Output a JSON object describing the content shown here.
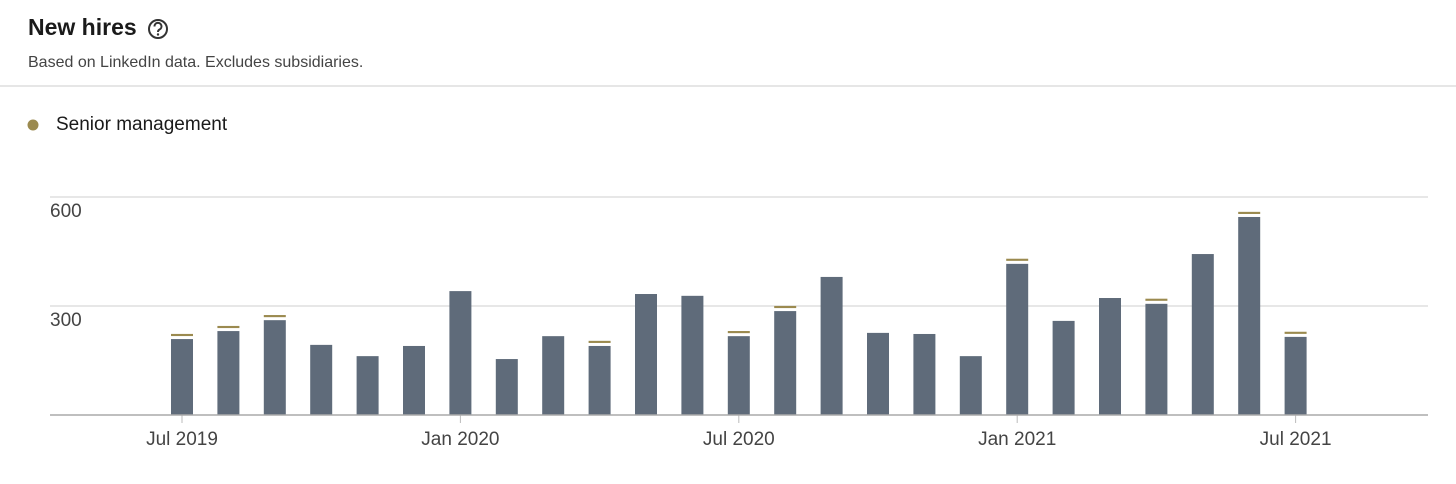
{
  "chart_data": {
    "type": "bar",
    "stacked": true,
    "title": "New hires",
    "subtitle": "Based on LinkedIn data. Excludes subsidiaries.",
    "categories": [
      "Jul 2019",
      null,
      null,
      null,
      null,
      null,
      "Jan 2020",
      null,
      null,
      null,
      null,
      null,
      "Jul 2020",
      null,
      null,
      null,
      null,
      null,
      "Jan 2021",
      null,
      null,
      null,
      null,
      null,
      "Jul 2021"
    ],
    "series": [
      {
        "color": "#5f6b7a",
        "values": [
          209,
          231,
          261,
          193,
          162,
          190,
          341,
          154,
          217,
          190,
          333,
          328,
          217,
          286,
          380,
          226,
          223,
          162,
          416,
          259,
          322,
          306,
          443,
          545,
          215
        ]
      },
      {
        "name": "Senior management",
        "color": "#9b8a4f",
        "values": [
          10,
          10,
          10,
          0,
          0,
          0,
          0,
          0,
          0,
          10,
          0,
          0,
          10,
          10,
          0,
          0,
          0,
          0,
          10,
          0,
          0,
          10,
          0,
          10,
          10
        ]
      }
    ],
    "ylim": [
      0,
      600
    ],
    "yticks": [
      300,
      600
    ],
    "grid": true
  }
}
